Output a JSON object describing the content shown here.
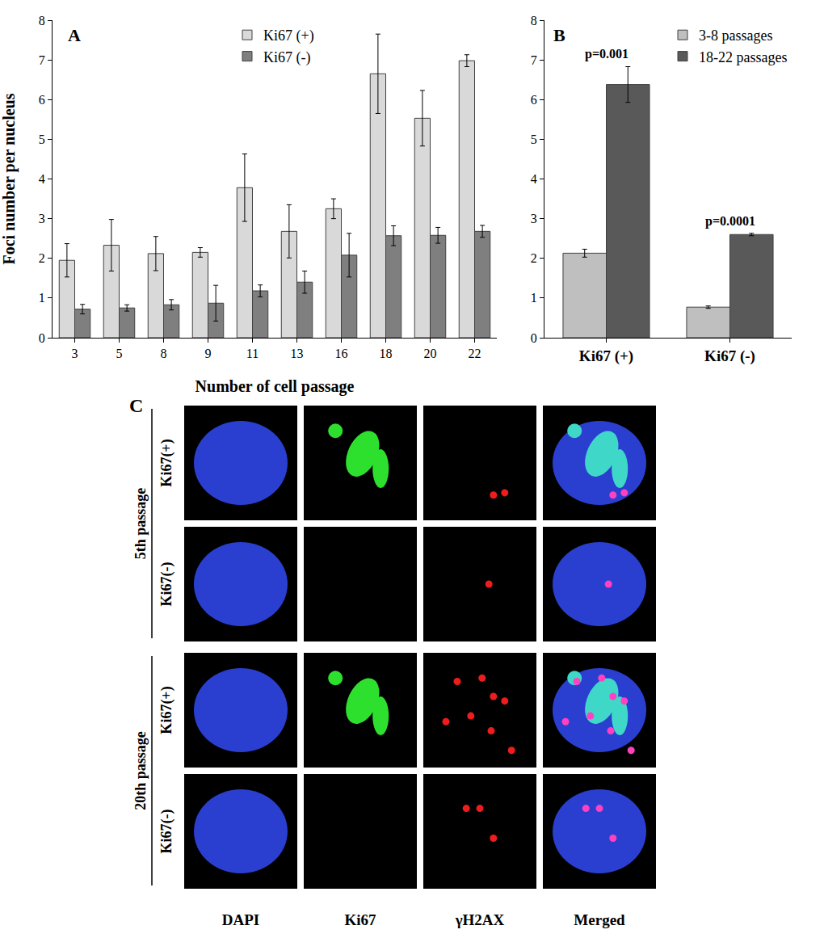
{
  "chart_data": [
    {
      "type": "bar",
      "title": "A",
      "x_label": "Number of cell passage",
      "y_label": "Foci number per nucleus",
      "categories": [
        "3",
        "5",
        "8",
        "9",
        "11",
        "13",
        "16",
        "18",
        "20",
        "22"
      ],
      "series": [
        {
          "name": "Ki67 (+)",
          "color": "#d9d9d9",
          "values": [
            1.95,
            2.33,
            2.12,
            2.15,
            3.78,
            2.68,
            3.25,
            6.65,
            5.53,
            6.98
          ],
          "errors": [
            0.42,
            0.65,
            0.43,
            0.12,
            0.85,
            0.67,
            0.25,
            1.0,
            0.7,
            0.15
          ]
        },
        {
          "name": "Ki67 (-)",
          "color": "#7f7f7f",
          "values": [
            0.72,
            0.75,
            0.83,
            0.87,
            1.18,
            1.4,
            2.08,
            2.57,
            2.58,
            2.68
          ],
          "errors": [
            0.12,
            0.08,
            0.13,
            0.45,
            0.15,
            0.28,
            0.55,
            0.25,
            0.2,
            0.15
          ]
        }
      ],
      "ylim": [
        0,
        8
      ],
      "yticks": [
        0,
        1,
        2,
        3,
        4,
        5,
        6,
        7,
        8
      ],
      "grid": false,
      "legend": "top"
    },
    {
      "type": "bar",
      "title": "B",
      "categories": [
        "Ki67 (+)",
        "Ki67 (-)"
      ],
      "series": [
        {
          "name": "3-8 passages",
          "color": "#bfbfbf",
          "values": [
            2.13,
            0.77
          ],
          "errors": [
            0.1,
            0.03
          ]
        },
        {
          "name": "18-22 passages",
          "color": "#595959",
          "values": [
            6.38,
            2.6
          ],
          "errors": [
            0.45,
            0.03
          ]
        }
      ],
      "annotations": [
        {
          "text": "p=0.001",
          "category": "Ki67 (+)"
        },
        {
          "text": "p=0.0001",
          "category": "Ki67 (-)"
        }
      ],
      "ylim": [
        0,
        8
      ],
      "yticks": [
        0,
        1,
        2,
        3,
        4,
        5,
        6,
        7,
        8
      ],
      "grid": false,
      "legend": "top right"
    }
  ],
  "image_panel": {
    "label": "C",
    "columns": [
      "DAPI",
      "Ki67",
      "γH2AX",
      "Merged"
    ],
    "groups": [
      {
        "name": "5th passage",
        "rows": [
          "Ki67(+)",
          "Ki67(-)"
        ]
      },
      {
        "name": "20th passage",
        "rows": [
          "Ki67(+)",
          "Ki67(-)"
        ]
      }
    ]
  }
}
